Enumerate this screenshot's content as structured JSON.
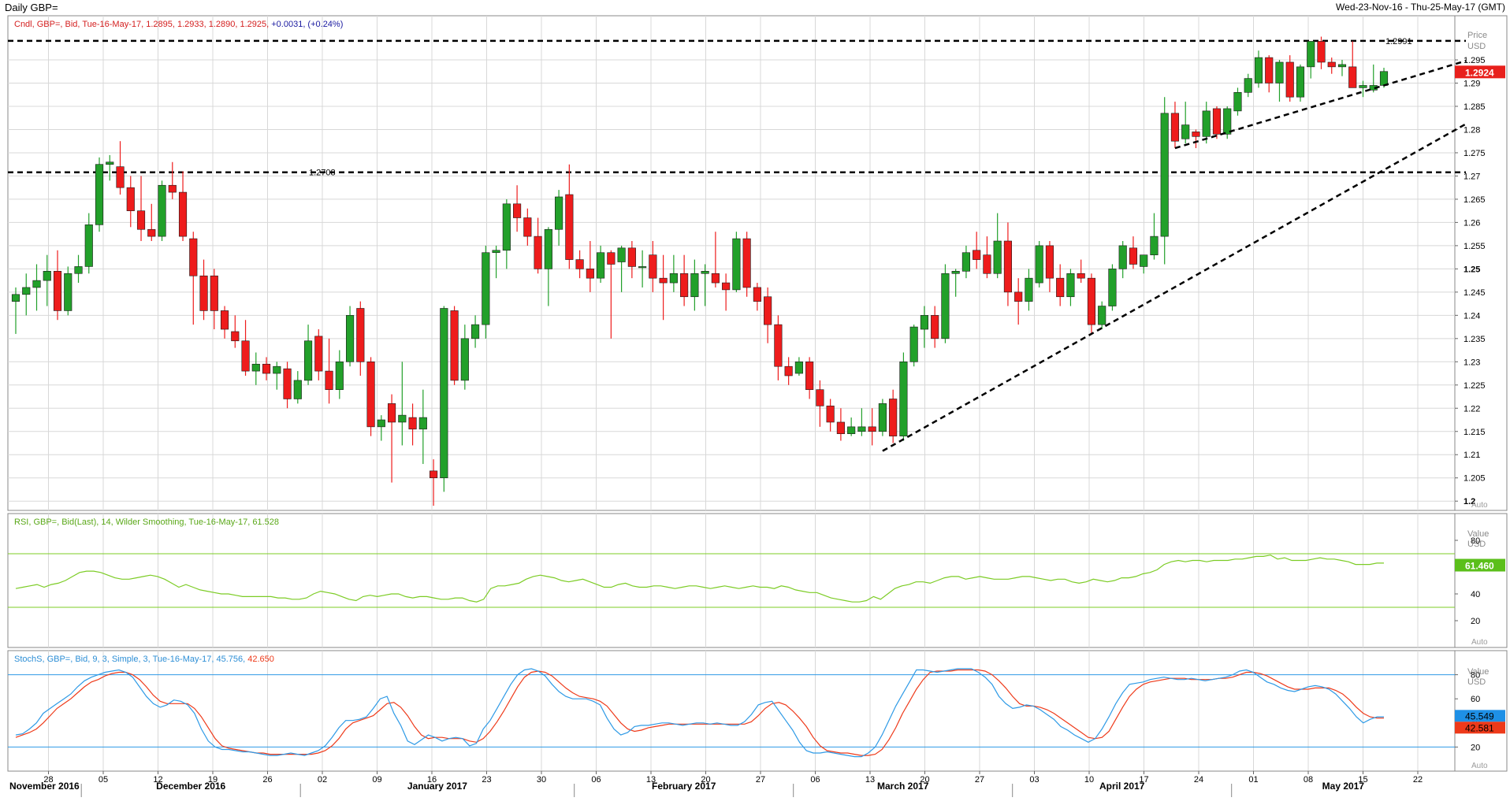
{
  "window": {
    "title": "Daily GBP=",
    "range": "Wed-23-Nov-16 - Thu-25-May-17 (GMT)"
  },
  "price_panel": {
    "legend_prefix": "Cndl, GBP=, Bid, Tue-16-May-17, 1.2895, 1.2933, 1.2890, 1.2925,",
    "legend_change": "+0.0031, (+0.24%)",
    "axis_title": "Price",
    "axis_unit": "USD",
    "last_price": "1.2924",
    "resistance_1": "1.2991",
    "resistance_2": "1.2708",
    "auto": "Auto"
  },
  "rsi_panel": {
    "legend": "RSI, GBP=, Bid(Last), 14, Wilder Smoothing, Tue-16-May-17, 61.528",
    "axis_title": "Value",
    "axis_unit": "USD",
    "last_value": "61.460",
    "auto": "Auto"
  },
  "stoch_panel": {
    "legend_prefix": "StochS, GBP=, Bid, 9, 3, Simple, 3, Tue-16-May-17, 45.756,",
    "legend_slow": "42.650",
    "axis_title": "Value",
    "axis_unit": "USD",
    "last_k": "45.549",
    "last_d": "42.581",
    "auto": "Auto"
  },
  "colors": {
    "up": "#22a02a",
    "down": "#ee1c1c",
    "rsi": "#7ccc25",
    "stoch_k": "#2e9ae6",
    "stoch_d": "#ee3a1a",
    "grid": "#d8d8d8",
    "legend_red": "#d42020",
    "legend_blue": "#1a1aa0"
  },
  "chart_data": {
    "type": "candlestick",
    "ylim": [
      1.198,
      1.3045
    ],
    "yticks": [
      "1.2",
      "1.205",
      "1.21",
      "1.215",
      "1.22",
      "1.225",
      "1.23",
      "1.235",
      "1.24",
      "1.245",
      "1.25",
      "1.255",
      "1.26",
      "1.265",
      "1.27",
      "1.275",
      "1.28",
      "1.285",
      "1.29",
      "1.295"
    ],
    "bold_ticks": [
      "1.2",
      "1.25"
    ],
    "day_ticks": [
      "28",
      "05",
      "12",
      "19",
      "26",
      "02",
      "09",
      "16",
      "23",
      "30",
      "06",
      "13",
      "20",
      "27",
      "06",
      "13",
      "20",
      "27",
      "03",
      "10",
      "17",
      "24",
      "01",
      "08",
      "15",
      "22"
    ],
    "months": [
      "November 2016",
      "December 2016",
      "January 2017",
      "February 2017",
      "March 2017",
      "April 2017",
      "May 2017"
    ],
    "candles": [
      [
        1.243,
        1.246,
        1.236,
        1.2445
      ],
      [
        1.2445,
        1.249,
        1.24,
        1.246
      ],
      [
        1.246,
        1.251,
        1.241,
        1.2475
      ],
      [
        1.2475,
        1.253,
        1.242,
        1.2495
      ],
      [
        1.2495,
        1.254,
        1.239,
        1.241
      ],
      [
        1.241,
        1.2505,
        1.24,
        1.249
      ],
      [
        1.249,
        1.253,
        1.247,
        1.2505
      ],
      [
        1.2505,
        1.262,
        1.249,
        1.2595
      ],
      [
        1.2595,
        1.274,
        1.258,
        1.2725
      ],
      [
        1.2725,
        1.2745,
        1.269,
        1.273
      ],
      [
        1.272,
        1.2775,
        1.266,
        1.2675
      ],
      [
        1.2675,
        1.27,
        1.259,
        1.2625
      ],
      [
        1.2625,
        1.27,
        1.256,
        1.2585
      ],
      [
        1.2585,
        1.264,
        1.256,
        1.257
      ],
      [
        1.257,
        1.269,
        1.256,
        1.268
      ],
      [
        1.268,
        1.273,
        1.265,
        1.2665
      ],
      [
        1.2665,
        1.271,
        1.256,
        1.257
      ],
      [
        1.2565,
        1.258,
        1.238,
        1.2485
      ],
      [
        1.2485,
        1.252,
        1.239,
        1.241
      ],
      [
        1.2485,
        1.25,
        1.237,
        1.241
      ],
      [
        1.241,
        1.242,
        1.235,
        1.237
      ],
      [
        1.2365,
        1.24,
        1.233,
        1.2345
      ],
      [
        1.2345,
        1.239,
        1.227,
        1.228
      ],
      [
        1.228,
        1.232,
        1.225,
        1.2295
      ],
      [
        1.2295,
        1.231,
        1.226,
        1.2275
      ],
      [
        1.2275,
        1.23,
        1.224,
        1.229
      ],
      [
        1.2285,
        1.23,
        1.22,
        1.222
      ],
      [
        1.222,
        1.228,
        1.221,
        1.226
      ],
      [
        1.226,
        1.238,
        1.225,
        1.2345
      ],
      [
        1.2355,
        1.237,
        1.226,
        1.228
      ],
      [
        1.228,
        1.235,
        1.221,
        1.224
      ],
      [
        1.224,
        1.2325,
        1.222,
        1.23
      ],
      [
        1.23,
        1.242,
        1.229,
        1.24
      ],
      [
        1.2415,
        1.243,
        1.227,
        1.23
      ],
      [
        1.23,
        1.231,
        1.214,
        1.216
      ],
      [
        1.216,
        1.2185,
        1.213,
        1.2175
      ],
      [
        1.221,
        1.223,
        1.204,
        1.217
      ],
      [
        1.217,
        1.23,
        1.212,
        1.2185
      ],
      [
        1.218,
        1.221,
        1.212,
        1.2155
      ],
      [
        1.2155,
        1.224,
        1.208,
        1.218
      ],
      [
        1.2065,
        1.209,
        1.199,
        1.205
      ],
      [
        1.205,
        1.242,
        1.202,
        1.2415
      ],
      [
        1.241,
        1.242,
        1.225,
        1.226
      ],
      [
        1.226,
        1.238,
        1.224,
        1.235
      ],
      [
        1.235,
        1.24,
        1.233,
        1.238
      ],
      [
        1.238,
        1.255,
        1.235,
        1.2535
      ],
      [
        1.2535,
        1.255,
        1.248,
        1.254
      ],
      [
        1.254,
        1.265,
        1.25,
        1.264
      ],
      [
        1.264,
        1.268,
        1.258,
        1.261
      ],
      [
        1.261,
        1.263,
        1.255,
        1.257
      ],
      [
        1.257,
        1.261,
        1.249,
        1.25
      ],
      [
        1.25,
        1.259,
        1.242,
        1.2585
      ],
      [
        1.2585,
        1.267,
        1.255,
        1.2655
      ],
      [
        1.266,
        1.2725,
        1.25,
        1.252
      ],
      [
        1.252,
        1.254,
        1.248,
        1.25
      ],
      [
        1.25,
        1.256,
        1.245,
        1.248
      ],
      [
        1.248,
        1.255,
        1.247,
        1.2535
      ],
      [
        1.2535,
        1.254,
        1.235,
        1.251
      ],
      [
        1.2515,
        1.255,
        1.245,
        1.2545
      ],
      [
        1.2545,
        1.256,
        1.248,
        1.2505
      ],
      [
        1.2505,
        1.254,
        1.246,
        1.2505
      ],
      [
        1.253,
        1.256,
        1.245,
        1.248
      ],
      [
        1.248,
        1.253,
        1.239,
        1.247
      ],
      [
        1.247,
        1.253,
        1.245,
        1.249
      ],
      [
        1.249,
        1.253,
        1.242,
        1.244
      ],
      [
        1.244,
        1.252,
        1.241,
        1.249
      ],
      [
        1.249,
        1.251,
        1.242,
        1.2495
      ],
      [
        1.249,
        1.258,
        1.246,
        1.247
      ],
      [
        1.247,
        1.249,
        1.241,
        1.2455
      ],
      [
        1.2455,
        1.258,
        1.245,
        1.2565
      ],
      [
        1.2565,
        1.258,
        1.244,
        1.246
      ],
      [
        1.246,
        1.247,
        1.241,
        1.243
      ],
      [
        1.244,
        1.246,
        1.234,
        1.238
      ],
      [
        1.238,
        1.24,
        1.226,
        1.229
      ],
      [
        1.229,
        1.231,
        1.225,
        1.227
      ],
      [
        1.2275,
        1.231,
        1.227,
        1.23
      ],
      [
        1.23,
        1.231,
        1.222,
        1.224
      ],
      [
        1.224,
        1.226,
        1.216,
        1.2205
      ],
      [
        1.2205,
        1.222,
        1.215,
        1.217
      ],
      [
        1.217,
        1.22,
        1.213,
        1.2145
      ],
      [
        1.2145,
        1.218,
        1.214,
        1.216
      ],
      [
        1.215,
        1.22,
        1.214,
        1.216
      ],
      [
        1.216,
        1.22,
        1.212,
        1.215
      ],
      [
        1.215,
        1.222,
        1.214,
        1.221
      ],
      [
        1.222,
        1.224,
        1.2125,
        1.214
      ],
      [
        1.214,
        1.232,
        1.213,
        1.23
      ],
      [
        1.23,
        1.238,
        1.229,
        1.2375
      ],
      [
        1.237,
        1.242,
        1.233,
        1.24
      ],
      [
        1.24,
        1.242,
        1.233,
        1.235
      ],
      [
        1.235,
        1.251,
        1.234,
        1.249
      ],
      [
        1.249,
        1.25,
        1.244,
        1.2495
      ],
      [
        1.2495,
        1.255,
        1.248,
        1.2535
      ],
      [
        1.254,
        1.258,
        1.25,
        1.252
      ],
      [
        1.253,
        1.257,
        1.248,
        1.249
      ],
      [
        1.249,
        1.262,
        1.248,
        1.256
      ],
      [
        1.256,
        1.26,
        1.242,
        1.245
      ],
      [
        1.245,
        1.248,
        1.238,
        1.243
      ],
      [
        1.243,
        1.25,
        1.241,
        1.248
      ],
      [
        1.247,
        1.256,
        1.246,
        1.255
      ],
      [
        1.255,
        1.256,
        1.245,
        1.248
      ],
      [
        1.248,
        1.251,
        1.242,
        1.244
      ],
      [
        1.244,
        1.25,
        1.242,
        1.249
      ],
      [
        1.249,
        1.252,
        1.247,
        1.248
      ],
      [
        1.248,
        1.249,
        1.236,
        1.238
      ],
      [
        1.238,
        1.243,
        1.237,
        1.242
      ],
      [
        1.242,
        1.251,
        1.241,
        1.25
      ],
      [
        1.25,
        1.256,
        1.248,
        1.255
      ],
      [
        1.2545,
        1.257,
        1.25,
        1.251
      ],
      [
        1.2505,
        1.253,
        1.249,
        1.253
      ],
      [
        1.253,
        1.262,
        1.252,
        1.257
      ],
      [
        1.257,
        1.287,
        1.251,
        1.2835
      ],
      [
        1.2835,
        1.286,
        1.276,
        1.2775
      ],
      [
        1.278,
        1.286,
        1.277,
        1.281
      ],
      [
        1.2795,
        1.28,
        1.276,
        1.2785
      ],
      [
        1.2785,
        1.286,
        1.277,
        1.284
      ],
      [
        1.2845,
        1.285,
        1.278,
        1.279
      ],
      [
        1.279,
        1.285,
        1.278,
        1.2845
      ],
      [
        1.284,
        1.289,
        1.283,
        1.288
      ],
      [
        1.288,
        1.292,
        1.287,
        1.291
      ],
      [
        1.29,
        1.297,
        1.289,
        1.2955
      ],
      [
        1.2955,
        1.296,
        1.288,
        1.29
      ],
      [
        1.29,
        1.295,
        1.286,
        1.2945
      ],
      [
        1.2945,
        1.296,
        1.286,
        1.287
      ],
      [
        1.287,
        1.294,
        1.286,
        1.2935
      ],
      [
        1.2935,
        1.299,
        1.291,
        1.299
      ],
      [
        1.299,
        1.3,
        1.293,
        1.2945
      ],
      [
        1.2945,
        1.2955,
        1.292,
        1.2935
      ],
      [
        1.2935,
        1.295,
        1.2915,
        1.294
      ],
      [
        1.2935,
        1.299,
        1.29,
        1.289
      ],
      [
        1.289,
        1.2905,
        1.287,
        1.2895
      ],
      [
        1.2885,
        1.294,
        1.288,
        1.2895
      ],
      [
        1.2895,
        1.2933,
        1.289,
        1.2925
      ]
    ],
    "rsi": [
      44,
      45,
      46,
      47,
      45,
      47,
      48,
      50,
      53,
      56,
      57,
      57,
      56,
      54,
      52,
      51,
      51,
      52,
      53,
      54,
      53,
      51,
      48,
      45,
      47,
      45,
      43,
      42,
      41,
      40,
      40,
      39,
      38,
      38,
      38,
      38,
      38,
      37,
      37,
      36,
      36,
      37,
      40,
      42,
      41,
      40,
      38,
      36,
      35,
      38,
      39,
      38,
      39,
      40,
      40,
      38,
      37,
      38,
      38,
      37,
      36,
      36,
      37,
      37,
      35,
      34,
      36,
      44,
      46,
      46,
      47,
      48,
      51,
      53,
      54,
      53,
      52,
      50,
      49,
      50,
      51,
      49,
      47,
      45,
      45,
      47,
      48,
      46,
      45,
      45,
      46,
      46,
      45,
      44,
      45,
      46,
      46,
      45,
      44,
      45,
      46,
      45,
      44,
      45,
      46,
      45,
      45,
      44,
      46,
      45,
      43,
      42,
      41,
      41,
      39,
      37,
      36,
      35,
      34,
      34,
      35,
      38,
      36,
      40,
      44,
      46,
      47,
      49,
      49,
      48,
      50,
      52,
      53,
      53,
      51,
      52,
      53,
      52,
      51,
      51,
      51,
      52,
      53,
      53,
      52,
      51,
      50,
      51,
      51,
      49,
      48,
      49,
      51,
      50,
      49,
      50,
      52,
      52,
      53,
      55,
      56,
      58,
      62,
      64,
      65,
      64,
      65,
      65,
      64,
      65,
      65,
      65,
      66,
      66,
      67,
      68,
      68,
      69,
      66,
      67,
      65,
      65,
      65,
      66,
      67,
      66,
      66,
      65,
      64,
      62,
      62,
      62,
      63,
      63
    ],
    "stoch_k": [
      30,
      31,
      35,
      40,
      48,
      52,
      56,
      60,
      64,
      70,
      75,
      78,
      80,
      82,
      83,
      84,
      82,
      78,
      70,
      62,
      56,
      53,
      55,
      59,
      58,
      55,
      48,
      35,
      25,
      20,
      18,
      18,
      17,
      16,
      16,
      15,
      14,
      13,
      13,
      14,
      15,
      14,
      13,
      15,
      17,
      21,
      28,
      36,
      42,
      42,
      43,
      45,
      52,
      60,
      62,
      48,
      38,
      25,
      22,
      26,
      30,
      28,
      25,
      27,
      28,
      27,
      21,
      23,
      35,
      42,
      52,
      62,
      72,
      80,
      84,
      85,
      83,
      79,
      72,
      66,
      62,
      60,
      60,
      60,
      58,
      55,
      44,
      35,
      30,
      32,
      37,
      38,
      38,
      39,
      40,
      40,
      39,
      38,
      39,
      40,
      40,
      39,
      40,
      39,
      38,
      38,
      41,
      47,
      55,
      57,
      58,
      50,
      42,
      34,
      24,
      17,
      15,
      15,
      16,
      15,
      14,
      13,
      12,
      12,
      15,
      20,
      30,
      42,
      54,
      64,
      74,
      84,
      84,
      83,
      82,
      83,
      84,
      85,
      85,
      85,
      82,
      78,
      72,
      62,
      56,
      52,
      53,
      55,
      54,
      51,
      47,
      43,
      37,
      34,
      30,
      27,
      24,
      27,
      35,
      45,
      56,
      65,
      72,
      73,
      74,
      76,
      77,
      78,
      77,
      76,
      76,
      77,
      76,
      75,
      76,
      77,
      78,
      80,
      83,
      84,
      82,
      78,
      74,
      72,
      69,
      67,
      66,
      68,
      70,
      71,
      70,
      68,
      64,
      58,
      52,
      45,
      40,
      43,
      45,
      45
    ],
    "stoch_d": [
      28,
      30,
      32,
      35,
      40,
      46,
      52,
      56,
      60,
      65,
      70,
      74,
      76,
      79,
      81,
      82,
      82,
      80,
      76,
      70,
      63,
      58,
      56,
      56,
      56,
      56,
      52,
      45,
      36,
      27,
      21,
      19,
      18,
      17,
      16,
      15,
      15,
      14,
      14,
      14,
      14,
      14,
      14,
      14,
      15,
      17,
      21,
      27,
      35,
      40,
      42,
      44,
      46,
      51,
      56,
      57,
      53,
      46,
      37,
      30,
      27,
      28,
      28,
      27,
      27,
      27,
      25,
      24,
      27,
      33,
      41,
      50,
      60,
      70,
      78,
      82,
      83,
      82,
      79,
      74,
      69,
      65,
      62,
      61,
      60,
      58,
      54,
      47,
      40,
      35,
      33,
      34,
      36,
      37,
      38,
      39,
      39,
      39,
      39,
      39,
      39,
      39,
      39,
      39,
      39,
      39,
      39,
      41,
      46,
      52,
      56,
      57,
      55,
      50,
      44,
      37,
      28,
      21,
      17,
      16,
      15,
      15,
      14,
      13,
      13,
      14,
      18,
      26,
      36,
      48,
      58,
      68,
      76,
      82,
      83,
      83,
      83,
      84,
      84,
      84,
      84,
      83,
      80,
      75,
      69,
      62,
      56,
      54,
      54,
      53,
      51,
      48,
      44,
      40,
      36,
      32,
      28,
      27,
      28,
      33,
      43,
      53,
      62,
      68,
      72,
      74,
      75,
      76,
      77,
      77,
      77,
      76,
      76,
      76,
      76,
      77,
      77,
      78,
      80,
      82,
      82,
      81,
      79,
      76,
      73,
      70,
      68,
      68,
      68,
      69,
      69,
      69,
      67,
      64,
      59,
      53,
      48,
      45,
      44,
      44
    ]
  }
}
